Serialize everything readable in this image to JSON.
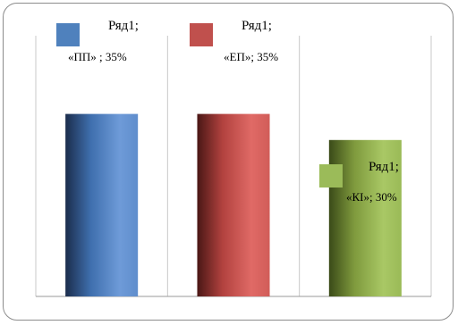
{
  "chart_data": {
    "type": "bar",
    "categories": [
      "«ПП»",
      "«ЕП»",
      "«КІ»"
    ],
    "series": [
      {
        "name": "Ряд1",
        "values": [
          35,
          35,
          30
        ]
      }
    ],
    "ylim": [
      0,
      50
    ],
    "grid": "vertical",
    "colors": [
      "#4f81bd",
      "#c0504d",
      "#9bbb59"
    ],
    "data_labels": [
      {
        "series": "Ряд1;",
        "category": "«ПП» ; 35%"
      },
      {
        "series": "Ряд1;",
        "category": "«ЕП»; 35%"
      },
      {
        "series": "Ряд1;",
        "category": "«КІ»; 30%"
      }
    ]
  }
}
